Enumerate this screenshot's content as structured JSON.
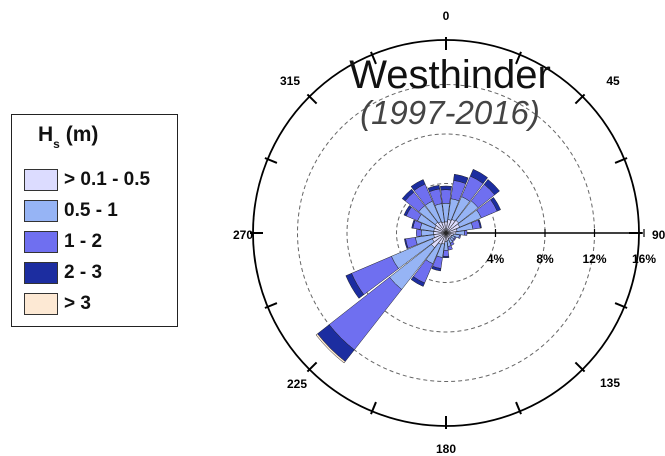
{
  "chart_data": {
    "type": "polar-bar",
    "title": "Westhinder",
    "subtitle": "(1997-2016)",
    "legend_title": "H",
    "legend_title_sub": "s",
    "legend_title_unit": "(m)",
    "direction_labels": [
      "0",
      "45",
      "90",
      "135",
      "180",
      "225",
      "270",
      "315"
    ],
    "radial_labels": [
      "4%",
      "8%",
      "12%",
      "16%"
    ],
    "radial_values": [
      4,
      8,
      12,
      16
    ],
    "rmax": 16,
    "bin_width_deg": 15,
    "categories": [
      0,
      15,
      30,
      45,
      60,
      75,
      90,
      105,
      120,
      135,
      150,
      165,
      180,
      195,
      210,
      225,
      240,
      255,
      270,
      285,
      300,
      315,
      330,
      345
    ],
    "series": [
      {
        "name": "> 0.1 - 0.5",
        "color": "#dcdcff",
        "values": [
          0.9,
          1.1,
          1.2,
          1.3,
          1.2,
          0.9,
          0.8,
          0.6,
          0.5,
          0.5,
          0.5,
          0.6,
          0.7,
          0.9,
          1.0,
          1.5,
          1.2,
          1.0,
          1.0,
          1.0,
          1.0,
          1.1,
          1.0,
          0.9
        ]
      },
      {
        "name": "0.5 - 1",
        "color": "#96b4f5",
        "values": [
          1.5,
          1.7,
          2.0,
          2.0,
          1.9,
          1.3,
          0.7,
          0.5,
          0.3,
          0.3,
          0.4,
          0.5,
          0.7,
          1.1,
          1.7,
          4.3,
          3.6,
          1.5,
          1.0,
          1.1,
          1.5,
          1.7,
          1.8,
          1.5
        ]
      },
      {
        "name": "1 - 2",
        "color": "#6f6ff0",
        "values": [
          1.1,
          1.5,
          1.8,
          1.7,
          1.4,
          0.6,
          0.2,
          0.1,
          0.1,
          0.1,
          0.2,
          0.3,
          0.5,
          0.9,
          1.7,
          6.2,
          3.5,
          0.8,
          0.4,
          0.6,
          1.0,
          1.4,
          1.5,
          1.2
        ]
      },
      {
        "name": "2 - 3",
        "color": "#1c2da0",
        "values": [
          0.3,
          0.5,
          0.6,
          0.5,
          0.3,
          0.1,
          0.0,
          0.0,
          0.0,
          0.0,
          0.0,
          0.0,
          0.1,
          0.2,
          0.3,
          1.2,
          0.5,
          0.1,
          0.0,
          0.1,
          0.2,
          0.3,
          0.4,
          0.3
        ]
      },
      {
        "name": "> 3",
        "color": "#fde9d4",
        "values": [
          0.0,
          0.0,
          0.0,
          0.0,
          0.0,
          0.0,
          0.0,
          0.0,
          0.0,
          0.0,
          0.0,
          0.0,
          0.0,
          0.0,
          0.0,
          0.15,
          0.0,
          0.0,
          0.0,
          0.0,
          0.0,
          0.0,
          0.0,
          0.0
        ]
      }
    ],
    "legend_position": "left",
    "grid": true
  }
}
